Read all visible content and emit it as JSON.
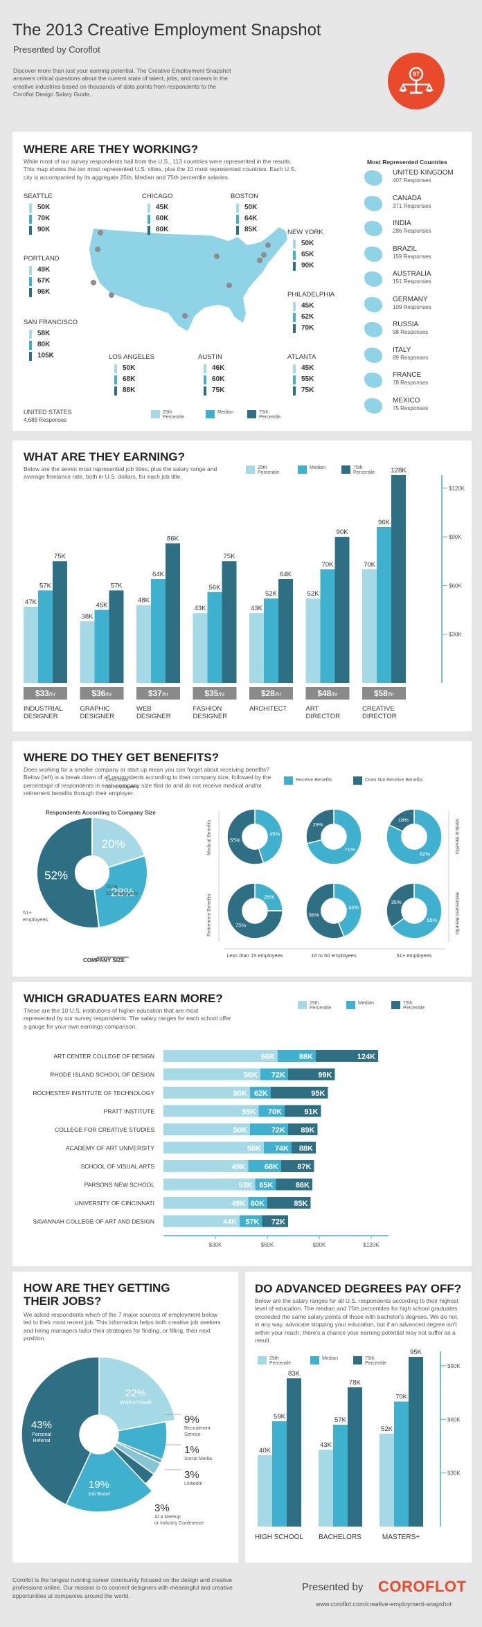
{
  "header": {
    "title": "The 2013 Creative Employment Snapshot",
    "subtitle": "Presented by Coroflot",
    "intro": "Discover more than just your earning potential. The Creative Employment Snapshot answers critical questions about the current state of talent, jobs, and careers in the creative industries based on thousands of data points from respondents to the Coroflot Design Salary Guide.",
    "badge_number": "97"
  },
  "working": {
    "title": "WHERE ARE THEY WORKING?",
    "desc": "While most of our survey respondents hail from the U.S., 113 countries were represented in the results. This map shows the ten most represented U.S. cities, plus the 10 most represented countries. Each U.S. city is accompanied by its aggregate 25th, Median and 75th percentile salaries.",
    "cities": [
      {
        "name": "SEATTLE",
        "values": [
          "50K",
          "70K",
          "90K"
        ]
      },
      {
        "name": "CHICAGO",
        "values": [
          "45K",
          "60K",
          "80K"
        ]
      },
      {
        "name": "BOSTON",
        "values": [
          "50K",
          "64K",
          "85K"
        ]
      },
      {
        "name": "NEW YORK",
        "values": [
          "50K",
          "65K",
          "90K"
        ]
      },
      {
        "name": "PORTLAND",
        "values": [
          "49K",
          "67K",
          "96K"
        ]
      },
      {
        "name": "PHILADELPHIA",
        "values": [
          "45K",
          "62K",
          "70K"
        ]
      },
      {
        "name": "SAN FRANCISCO",
        "values": [
          "58K",
          "80K",
          "105K"
        ]
      },
      {
        "name": "LOS ANGELES",
        "values": [
          "50K",
          "68K",
          "88K"
        ]
      },
      {
        "name": "AUSTIN",
        "values": [
          "46K",
          "60K",
          "75K"
        ]
      },
      {
        "name": "ATLANTA",
        "values": [
          "45K",
          "55K",
          "75K"
        ]
      }
    ],
    "us_total": {
      "name": "UNITED STATES",
      "responses": "4,689 Responses"
    },
    "legend": [
      "25th Percentile",
      "Median",
      "75th Percentile"
    ],
    "countries_title": "Most Represented Countries",
    "countries": [
      {
        "name": "UNITED KINGDOM",
        "responses": "407 Responses"
      },
      {
        "name": "CANADA",
        "responses": "371 Responses"
      },
      {
        "name": "INDIA",
        "responses": "286 Responses"
      },
      {
        "name": "BRAZIL",
        "responses": "159 Responses"
      },
      {
        "name": "AUSTRALIA",
        "responses": "151 Responses"
      },
      {
        "name": "GERMANY",
        "responses": "109 Responses"
      },
      {
        "name": "RUSSIA",
        "responses": "98 Responses"
      },
      {
        "name": "ITALY",
        "responses": "89 Responses"
      },
      {
        "name": "FRANCE",
        "responses": "78 Responses"
      },
      {
        "name": "MEXICO",
        "responses": "75 Responses"
      }
    ]
  },
  "earning": {
    "title": "WHAT ARE THEY EARNING?",
    "desc": "Below are the seven most represented job titles, plus the salary range and average freelance rate, both in U.S. dollars, for each job title.",
    "legend": [
      "25th Percentile",
      "Median",
      "75th Percentile"
    ],
    "hourly_suffix": "/hr"
  },
  "benefits": {
    "title": "WHERE DO THEY GET BENEFITS?",
    "desc": "Does working for a smaller company or start up mean you can forget about receiving benefits? Below (left) is a break down of all respondents according to their company size, followed by the percentage of respondents in each company size that do and do not receive medical and/or retirement benefits through their employer.",
    "legend": [
      "Receive Benefits",
      "Does Not Receive Benefits"
    ],
    "pie_title": "Respondents According to Company Size",
    "company_size_label": "COMPANY SIZE",
    "row_labels": [
      "Medical Benefits",
      "Retirement Benefits"
    ],
    "col_labels": [
      "Less than 15 employees",
      "16 to 50 employees",
      "51+ employees"
    ]
  },
  "graduates": {
    "title": "WHICH GRADUATES EARN MORE?",
    "desc": "These are the 10 U.S. institutions of higher education that are most represented by our survey respondents. The salary ranges for each school offer a gauge for your own earnings comparison.",
    "legend": [
      "25th Percentile",
      "Median",
      "75th Percentile"
    ]
  },
  "jobs": {
    "title_line1": "HOW ARE THEY GETTING",
    "title_line2": "THEIR JOBS?",
    "desc": "We asked respondents which of the 7 major sources of employment below led to their most recent job. This information helps both creative job seekers and hiring managers tailor their strategies for finding, or filling, their next position."
  },
  "degrees": {
    "title": "DO ADVANCED DEGREES PAY OFF?",
    "desc": "Below are the salary ranges for all U.S. respondents according to their highest level of education. The median and 75th percentiles for high school graduates exceeded the same salary points of those with bachelor's degrees. We do not, in any way, advocate stopping your education, but if an advanced degree isn't within your reach, there's a chance your earning potential may not suffer as a result.",
    "legend": [
      "25th Percentile",
      "Median",
      "75th Percentile"
    ]
  },
  "footer": {
    "about": "Coroflot is the longest running career community focused on the design and creative professions online. Our mission is to connect designers with meaningful and creative opportunities at companies around the world.",
    "presented_by": "Presented by",
    "brand": "COROFLOT",
    "url": "www.coroflot.com/creative-employment-snapshot"
  },
  "colors": {
    "p25": "#a6d9e6",
    "median": "#3fb1cf",
    "p75": "#2f6f83",
    "rate": "#8a8a8a",
    "accent": "#ea4a2c"
  },
  "chart_data": [
    {
      "type": "bar",
      "title": "WHAT ARE THEY EARNING?",
      "categories": [
        "INDUSTRIAL DESIGNER",
        "GRAPHIC DESIGNER",
        "WEB DESIGNER",
        "FASHION DESIGNER",
        "ARCHITECT",
        "ART DIRECTOR",
        "CREATIVE DIRECTOR"
      ],
      "series": [
        {
          "name": "25th Percentile",
          "values": [
            47,
            38,
            48,
            43,
            43,
            52,
            70
          ]
        },
        {
          "name": "Median",
          "values": [
            57,
            45,
            64,
            56,
            52,
            70,
            96
          ]
        },
        {
          "name": "75th Percentile",
          "values": [
            75,
            57,
            86,
            75,
            64,
            90,
            128
          ]
        }
      ],
      "hourly_rates": [
        "$33",
        "$36",
        "$37",
        "$35",
        "$28",
        "$48",
        "$58"
      ],
      "yticks": [
        "$30K",
        "$60K",
        "$90K",
        "$120K"
      ],
      "ylim": [
        0,
        128
      ]
    },
    {
      "type": "pie",
      "title": "Respondents According to Company Size",
      "slices": [
        {
          "label": "Less than 15 employees",
          "value": 20
        },
        {
          "label": "16 to 50 employees",
          "value": 28
        },
        {
          "label": "51+ employees",
          "value": 52
        }
      ]
    },
    {
      "type": "pie",
      "title": "Benefits by company size",
      "donuts": [
        {
          "row": "Medical Benefits",
          "col": "Less than 15 employees",
          "receive": 45,
          "not_receive": 55
        },
        {
          "row": "Medical Benefits",
          "col": "16 to 50 employees",
          "receive": 71,
          "not_receive": 29
        },
        {
          "row": "Medical Benefits",
          "col": "51+ employees",
          "receive": 82,
          "not_receive": 18
        },
        {
          "row": "Retirement Benefits",
          "col": "Less than 15 employees",
          "receive": 25,
          "not_receive": 75
        },
        {
          "row": "Retirement Benefits",
          "col": "16 to 50 employees",
          "receive": 44,
          "not_receive": 56
        },
        {
          "row": "Retirement Benefits",
          "col": "51+ employees",
          "receive": 65,
          "not_receive": 35
        }
      ]
    },
    {
      "type": "bar",
      "title": "WHICH GRADUATES EARN MORE?",
      "categories": [
        "ART CENTER COLLEGE OF DESIGN",
        "RHODE ISLAND SCHOOL OF DESIGN",
        "ROCHESTER INSTITUTE OF TECHNOLOGY",
        "PRATT INSTITUTE",
        "COLLEGE FOR CREATIVE STUDIES",
        "ACADEMY OF ART UNIVERSITY",
        "SCHOOL OF VISUAL ARTS",
        "PARSONS NEW SCHOOL",
        "UNIVERSITY OF CINCINNATI",
        "SAVANNAH COLLEGE OF ART AND DESIGN"
      ],
      "series": [
        {
          "name": "25th Percentile",
          "values": [
            66,
            56,
            50,
            55,
            50,
            58,
            49,
            53,
            49,
            44
          ]
        },
        {
          "name": "Median",
          "values": [
            88,
            72,
            62,
            70,
            72,
            74,
            68,
            65,
            60,
            57
          ]
        },
        {
          "name": "75th Percentile",
          "values": [
            124,
            99,
            95,
            91,
            89,
            88,
            87,
            86,
            85,
            72
          ]
        }
      ],
      "xticks": [
        "$30K",
        "$60K",
        "$90K",
        "$120K"
      ],
      "xlim": [
        0,
        128
      ]
    },
    {
      "type": "pie",
      "title": "HOW ARE THEY GETTING THEIR JOBS?",
      "slices": [
        {
          "label": "Word of Mouth",
          "value": 22
        },
        {
          "label": "Recruitment Service",
          "value": 9
        },
        {
          "label": "Social Media",
          "value": 1
        },
        {
          "label": "LinkedIn",
          "value": 3
        },
        {
          "label": "At a Meetup or Industry Conference",
          "value": 3
        },
        {
          "label": "Job Board",
          "value": 19
        },
        {
          "label": "Personal Referral",
          "value": 43
        }
      ]
    },
    {
      "type": "bar",
      "title": "DO ADVANCED DEGREES PAY OFF?",
      "categories": [
        "HIGH SCHOOL",
        "BACHELORS",
        "MASTERS+"
      ],
      "series": [
        {
          "name": "25th Percentile",
          "values": [
            40,
            43,
            52
          ]
        },
        {
          "name": "Median",
          "values": [
            59,
            57,
            70
          ]
        },
        {
          "name": "75th Percentile",
          "values": [
            83,
            78,
            95
          ]
        }
      ],
      "yticks": [
        "$30K",
        "$60K",
        "$90K"
      ],
      "ylim": [
        0,
        95
      ]
    }
  ]
}
